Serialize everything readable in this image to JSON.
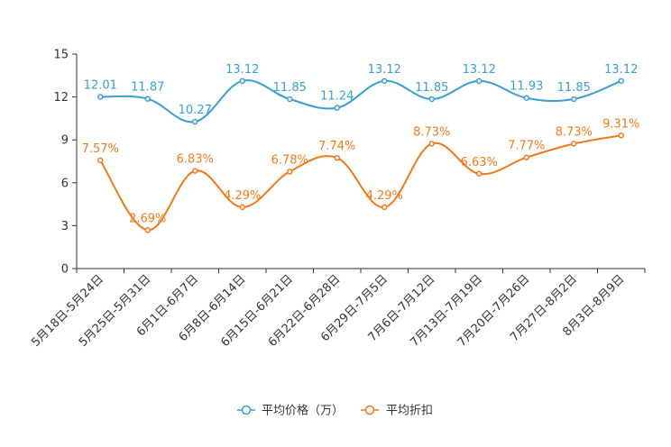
{
  "chart_data": {
    "type": "line",
    "title": "",
    "xlabel": "",
    "ylabel": "",
    "ylim": [
      0,
      15
    ],
    "yticks": [
      0,
      3,
      6,
      9,
      12,
      15
    ],
    "grid": false,
    "legend_position": "bottom-center",
    "categories": [
      "5月18日-5月24日",
      "5月25日-5月31日",
      "6月1日-6月7日",
      "6月8日-6月14日",
      "6月15日-6月21日",
      "6月22日-6月28日",
      "6月29日-7月5日",
      "7月6日-7月12日",
      "7月13日-7月19日",
      "7月20日-7月26日",
      "7月27日-8月2日",
      "8月3日-8月9日"
    ],
    "series": [
      {
        "name": "平均价格（万）",
        "color": "#3a9ed0",
        "values": [
          12.01,
          11.87,
          10.27,
          13.12,
          11.85,
          11.24,
          13.12,
          11.85,
          13.12,
          11.93,
          11.85,
          13.12
        ],
        "labels": [
          "12.01",
          "11.87",
          "10.27",
          "13.12",
          "11.85",
          "11.24",
          "13.12",
          "11.85",
          "13.12",
          "11.93",
          "11.85",
          "13.12"
        ]
      },
      {
        "name": "平均折扣",
        "color": "#f07a1a",
        "values": [
          7.57,
          2.69,
          6.83,
          4.29,
          6.78,
          7.74,
          4.29,
          8.73,
          6.63,
          7.77,
          8.73,
          9.31
        ],
        "labels": [
          "7.57%",
          "2.69%",
          "6.83%",
          "4.29%",
          "6.78%",
          "7.74%",
          "4.29%",
          "8.73%",
          "6.63%",
          "7.77%",
          "8.73%",
          "9.31%"
        ]
      }
    ]
  }
}
